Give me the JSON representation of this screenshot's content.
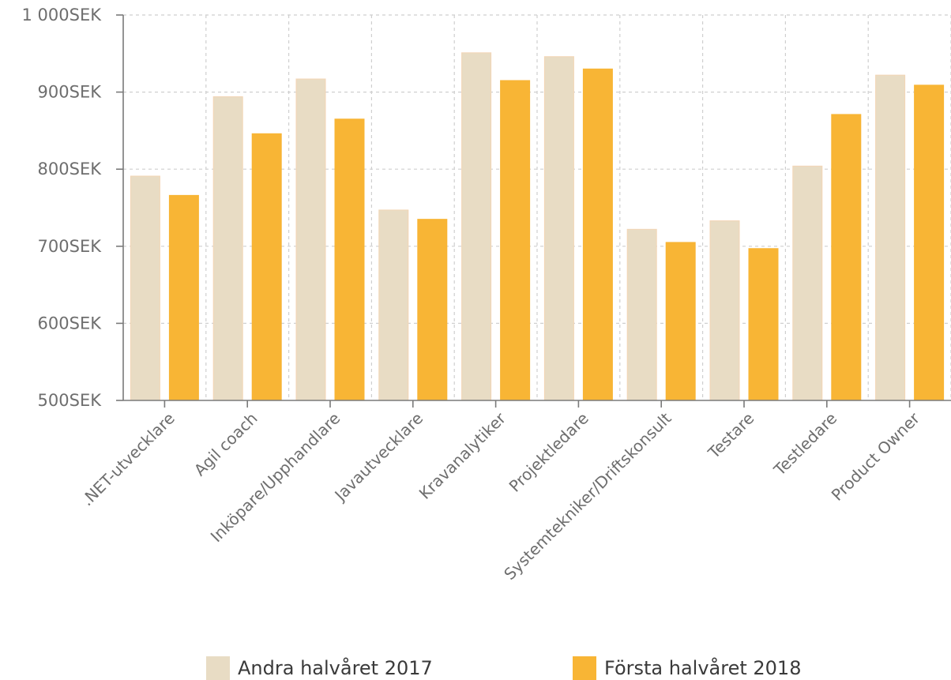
{
  "chart_data": {
    "type": "bar",
    "title": "",
    "xlabel": "",
    "ylabel": "",
    "ylim": [
      500,
      1000
    ],
    "yticks": [
      500,
      600,
      700,
      800,
      900,
      1000
    ],
    "ytick_labels": [
      "500SEK",
      "600SEK",
      "700SEK",
      "800SEK",
      "900SEK",
      "1 000SEK"
    ],
    "grid": true,
    "legend_position": "bottom",
    "categories": [
      ".NET-utvecklare",
      "Agil coach",
      "Inköpare/Upphandlare",
      "Javautvecklare",
      "Kravanalytiker",
      "Projektledare",
      "Systemtekniker/Driftskonsult",
      "Testare",
      "Testledare",
      "Product Owner"
    ],
    "series": [
      {
        "name": "Andra halvåret 2017",
        "color": "#e8dcc4",
        "values": [
          791,
          894,
          917,
          747,
          951,
          946,
          722,
          733,
          804,
          922
        ]
      },
      {
        "name": "Första halvåret 2018",
        "color": "#f8b535",
        "values": [
          766,
          846,
          865,
          735,
          915,
          930,
          705,
          697,
          871,
          909
        ]
      }
    ]
  }
}
